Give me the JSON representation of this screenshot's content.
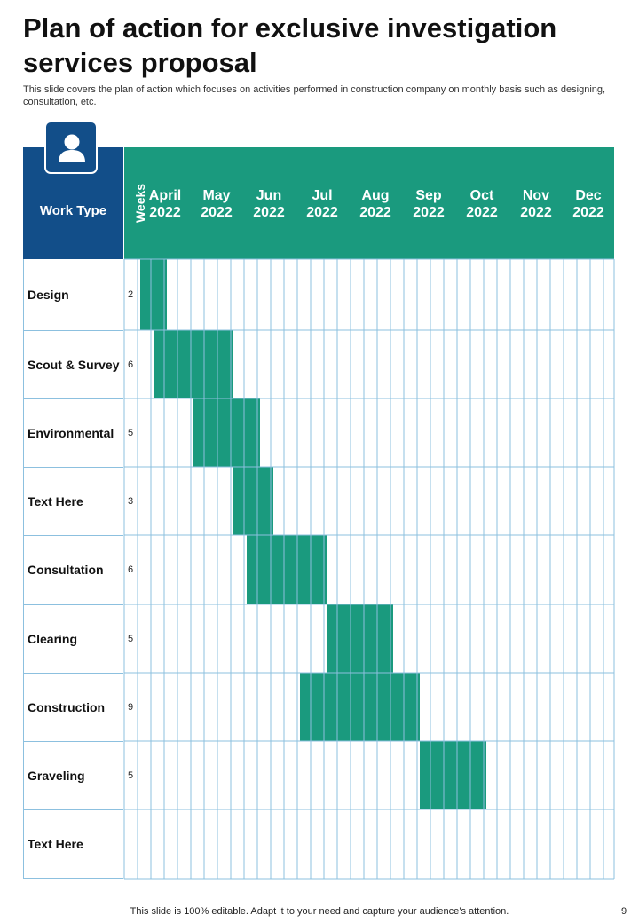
{
  "page": {
    "title": "Plan of action for exclusive investigation services proposal",
    "subtitle": "This slide covers the plan of action which focuses on activities performed in construction company on monthly basis such as designing, consultation, etc.",
    "footer": "This slide is 100% editable. Adapt it to your need and capture your audience’s attention.",
    "page_number": "9"
  },
  "table": {
    "column_header": "Work Type",
    "weeks_header": "Weeks",
    "header_icon": "user-icon",
    "months": [
      {
        "name": "April",
        "year": "2022"
      },
      {
        "name": "May",
        "year": "2022"
      },
      {
        "name": "Jun",
        "year": "2022"
      },
      {
        "name": "Jul",
        "year": "2022"
      },
      {
        "name": "Aug",
        "year": "2022"
      },
      {
        "name": "Sep",
        "year": "2022"
      },
      {
        "name": "Oct",
        "year": "2022"
      },
      {
        "name": "Nov",
        "year": "2022"
      },
      {
        "name": "Dec",
        "year": "2022"
      }
    ],
    "rows": [
      {
        "label": "Design",
        "weeks": "2",
        "start_week": 1
      },
      {
        "label": "Scout & Survey",
        "weeks": "6",
        "start_week": 2
      },
      {
        "label": "Environmental",
        "weeks": "5",
        "start_week": 5
      },
      {
        "label": "Text Here",
        "weeks": "3",
        "start_week": 8
      },
      {
        "label": "Consultation",
        "weeks": "6",
        "start_week": 9
      },
      {
        "label": "Clearing",
        "weeks": "5",
        "start_week": 15
      },
      {
        "label": "Construction",
        "weeks": "9",
        "start_week": 13
      },
      {
        "label": "Graveling",
        "weeks": "5",
        "start_week": 22
      },
      {
        "label": "Text Here",
        "weeks": "",
        "start_week": null
      }
    ]
  },
  "colors": {
    "header_blue": "#124e89",
    "header_green": "#1a9a7e",
    "bar_green": "#1a9a7e",
    "grid_line": "#8cc0df"
  }
}
